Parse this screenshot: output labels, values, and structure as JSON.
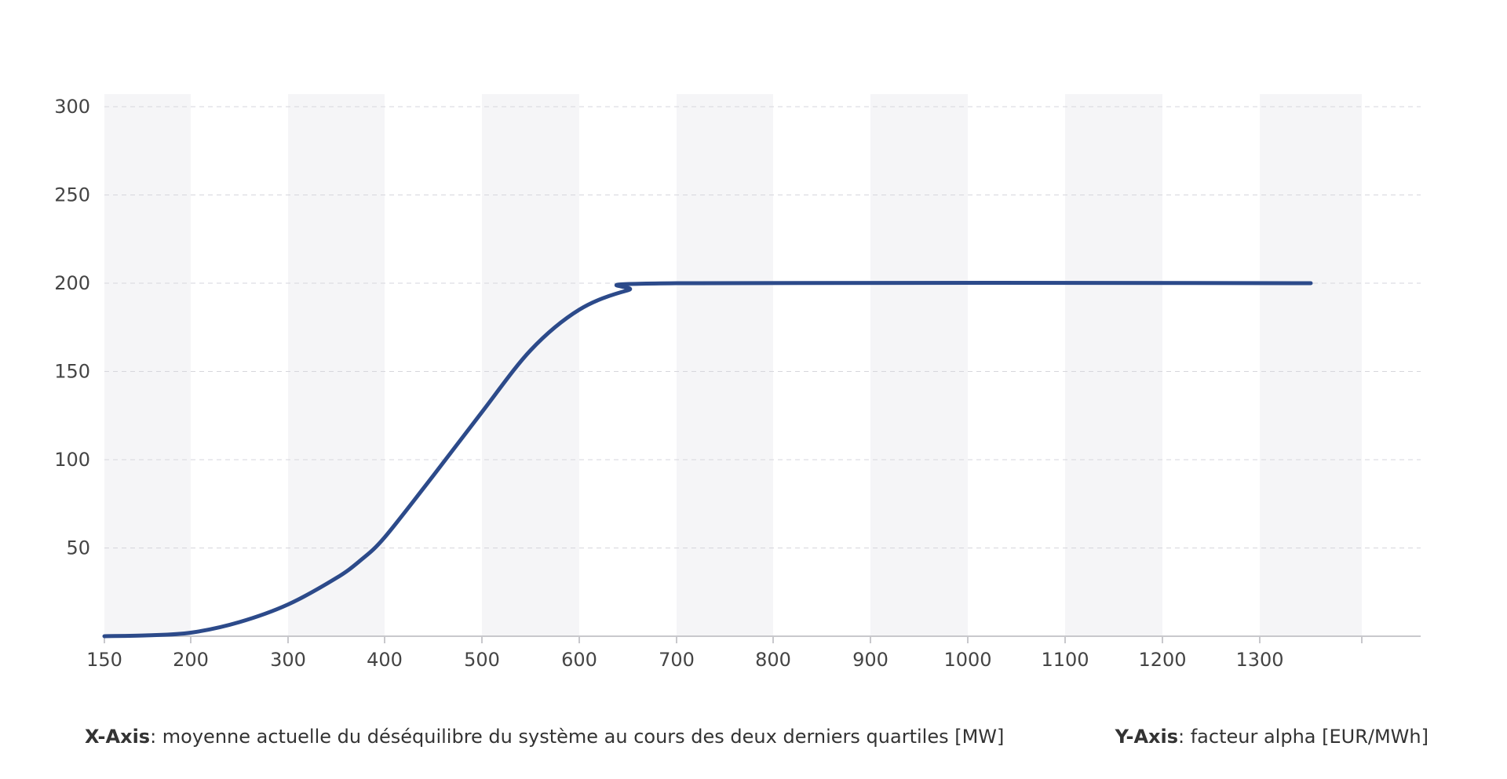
{
  "chart_data": {
    "type": "line",
    "title": "",
    "x_axis": {
      "caption_key": "X-Axis",
      "caption_text": ": moyenne actuelle du déséquilibre du système au cours des deux derniers quartiles [MW]",
      "ticks": [
        150,
        200,
        300,
        400,
        500,
        600,
        700,
        800,
        900,
        1000,
        1100,
        1200,
        1300
      ],
      "tick_labels": [
        "150",
        "200",
        "300",
        "400",
        "500",
        "600",
        "700",
        "800",
        "900",
        "1000",
        "1100",
        "1200",
        "1300"
      ],
      "range": [
        150,
        1400
      ]
    },
    "y_axis": {
      "caption_key": "Y-Axis",
      "caption_text": ": facteur alpha [EUR/MWh]",
      "ticks": [
        50,
        100,
        150,
        200,
        250,
        300
      ],
      "tick_labels": [
        "50",
        "100",
        "150",
        "200",
        "250",
        "300"
      ],
      "range": [
        0,
        300
      ]
    },
    "grid": {
      "horizontal_dashed": true,
      "alternating_column_bands": true
    },
    "series": [
      {
        "color": "#2c4a8a",
        "x": [
          150,
          175,
          200,
          250,
          300,
          350,
          375,
          400,
          450,
          500,
          550,
          600,
          650,
          700,
          1350
        ],
        "y": [
          0,
          0.5,
          2,
          8,
          18,
          33,
          43,
          56,
          91,
          127,
          162,
          185,
          196,
          200,
          200
        ]
      }
    ],
    "colors": {
      "line": "#2c4a8a",
      "band": "#f5f5f7",
      "grid": "#d6d6dc",
      "axis": "#c8c8cc"
    }
  }
}
